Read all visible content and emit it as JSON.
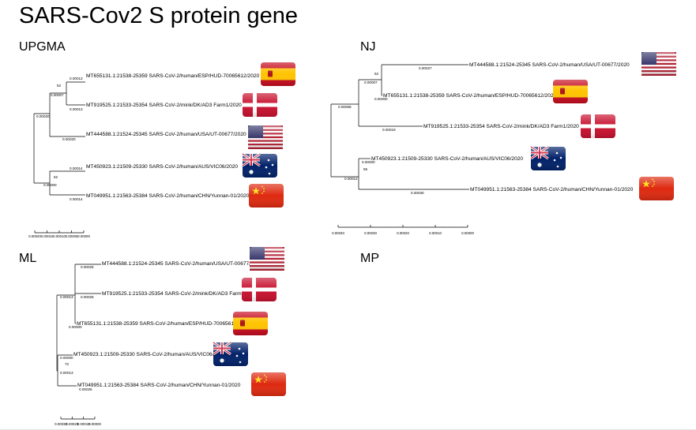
{
  "title": "SARS-Cov2 S protein gene",
  "methods": {
    "upgma": "UPGMA",
    "nj": "NJ",
    "ml": "ML",
    "mp": "MP"
  },
  "upgma": {
    "leaves": [
      {
        "label": "MT655131.1:21538-25359 SARS-CoV-2/human/ESP/HUD-70065612/2020",
        "flag": "spain-flag-icon"
      },
      {
        "label": "MT919525.1:21533-25354 SARS-CoV-2/mink/DK/AD3 Farm1/2020",
        "flag": "denmark-flag-icon"
      },
      {
        "label": "MT444588.1:21524-25345 SARS-CoV-2/human/USA/UT-00677/2020",
        "flag": "usa-flag-icon"
      },
      {
        "label": "MT450923.1:21509-25330 SARS-CoV-2/human/AUS/VIC06/2020",
        "flag": "australia-flag-icon"
      },
      {
        "label": "MT049951.1:21563-25384 SARS-CoV-2/human/CHN/Yunnan-01/2020",
        "flag": "china-flag-icon"
      }
    ],
    "branch_lengths": [
      "0.00013",
      "0.00013",
      "0.00007",
      "0.00020",
      "0.00020",
      "0.00014",
      "0.00014",
      "0.00000"
    ],
    "bootstrap": [
      "52",
      "62"
    ],
    "scale": [
      "0.00020",
      "0.00015",
      "0.00010",
      "0.00005",
      "0.00000"
    ]
  },
  "nj": {
    "leaves": [
      {
        "label": "MT444588.1:21524-25345 SARS-CoV-2/human/USA/UT-00677/2020",
        "flag": "usa-flag-icon"
      },
      {
        "label": "MT655131.1:21538-25359 SARS-CoV-2/human/ESP/HUD-70065612/2020",
        "flag": "spain-flag-icon"
      },
      {
        "label": "MT919525.1:21533-25354 SARS-CoV-2/mink/DK/AD3 Farm1/2020",
        "flag": "denmark-flag-icon"
      },
      {
        "label": "MT450923.1:21509-25330 SARS-CoV-2/human/AUS/VIC06/2020",
        "flag": "australia-flag-icon"
      },
      {
        "label": "MT049951.1:21563-25384 SARS-CoV-2/human/CHN/Yunnan-01/2020",
        "flag": "china-flag-icon"
      }
    ],
    "branch_lengths": [
      "0.00027",
      "0.00007",
      "0.00000",
      "0.00019",
      "0.00008",
      "0.00000",
      "0.00012",
      "0.00030"
    ],
    "bootstrap": [
      "52",
      "55"
    ],
    "scale": [
      "0.00040",
      "0.00030",
      "0.00020",
      "0.00010",
      "0.00000"
    ]
  },
  "ml": {
    "leaves": [
      {
        "label": "MT444588.1:21524-25345 SARS-CoV-2/human/USA/UT-00677/2020",
        "flag": "usa-flag-icon"
      },
      {
        "label": "MT919525.1:21533-25354 SARS-CoV-2/mink/DK/AD3 Farm1/2020",
        "flag": "denmark-flag-icon"
      },
      {
        "label": "MT655131.1:21538-25359 SARS-CoV-2/human/ESP/HUD-70065612/2020",
        "flag": "spain-flag-icon"
      },
      {
        "label": "MT450923.1:21509-25330 SARS-CoV-2/human/AUS/VIC06/2020",
        "flag": "australia-flag-icon"
      },
      {
        "label": "MT049951.1:21563-25384 SARS-CoV-2/human/CHN/Yunnan-01/2020",
        "flag": "china-flag-icon"
      }
    ],
    "branch_lengths": [
      "0.00026",
      "0.00026",
      "0.00013",
      "0.00000",
      "0.00000",
      "0.00013",
      "0.00026"
    ],
    "bootstrap": [
      "72"
    ],
    "scale": [
      "0.00030",
      "0.00020",
      "0.00010",
      "0.00000"
    ]
  },
  "colors": {
    "spain_red": "#c60b1e",
    "spain_yellow": "#ffc400",
    "denmark_red": "#c8102e",
    "usa_red": "#b22234",
    "usa_blue": "#3c3b6e",
    "aus_blue": "#012169",
    "china_red": "#de2910",
    "china_yellow": "#ffde00"
  }
}
